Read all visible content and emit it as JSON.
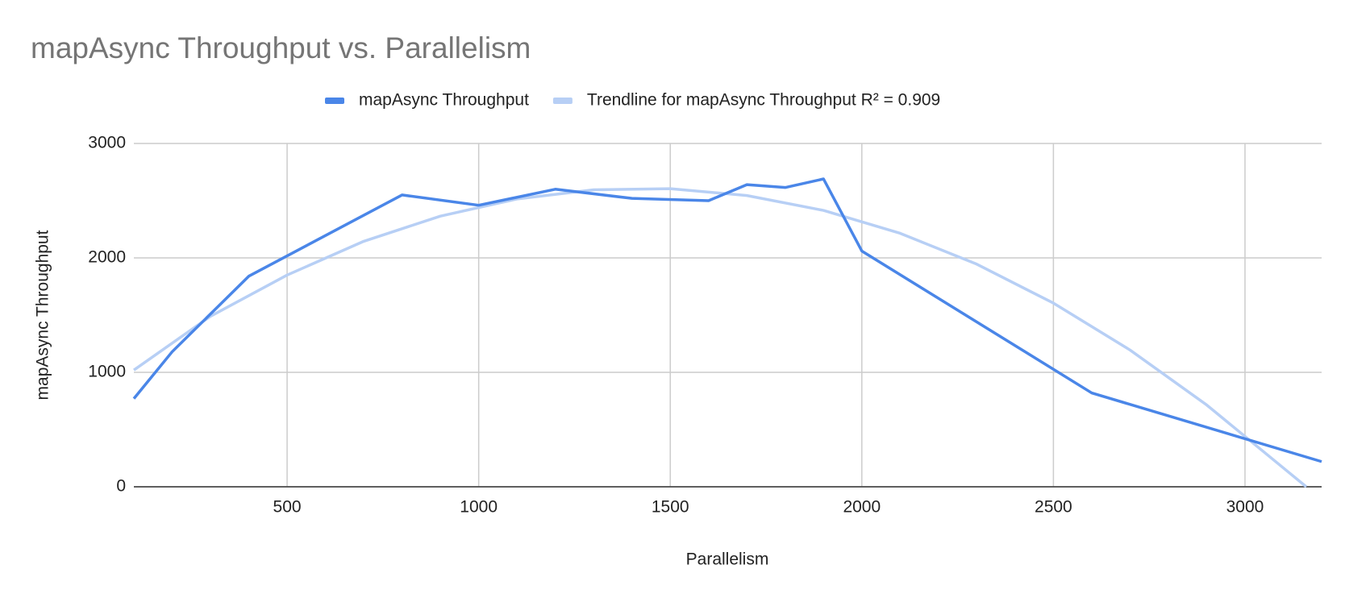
{
  "chart_data": {
    "type": "line",
    "title": "mapAsync Throughput vs. Parallelism",
    "x_label": "Parallelism",
    "y_label": "mapAsync Throughput",
    "xlim": [
      100,
      3200
    ],
    "ylim": [
      0,
      3000
    ],
    "xticks": [
      500,
      1000,
      1500,
      2000,
      2500,
      3000
    ],
    "yticks": [
      0,
      1000,
      2000,
      3000
    ],
    "grid": true,
    "legend": "top",
    "series": [
      {
        "name": "mapAsync Throughput",
        "color": "#4a86e8",
        "x": [
          100,
          200,
          400,
          800,
          1000,
          1200,
          1400,
          1600,
          1700,
          1800,
          1900,
          2000,
          2600,
          3200
        ],
        "values": [
          770,
          1180,
          1840,
          2550,
          2460,
          2600,
          2520,
          2500,
          2640,
          2615,
          2690,
          2060,
          820,
          220
        ]
      },
      {
        "name": "Trendline for mapAsync Throughput R² = 0.909",
        "color": "#b7cff5",
        "x": [
          100,
          300,
          500,
          700,
          900,
          1100,
          1300,
          1500,
          1700,
          1900,
          2100,
          2300,
          2500,
          2700,
          2900,
          3100,
          3160
        ],
        "values": [
          1020,
          1490,
          1850,
          2145,
          2365,
          2515,
          2595,
          2605,
          2545,
          2415,
          2215,
          1945,
          1605,
          1195,
          715,
          165,
          0
        ]
      }
    ]
  }
}
